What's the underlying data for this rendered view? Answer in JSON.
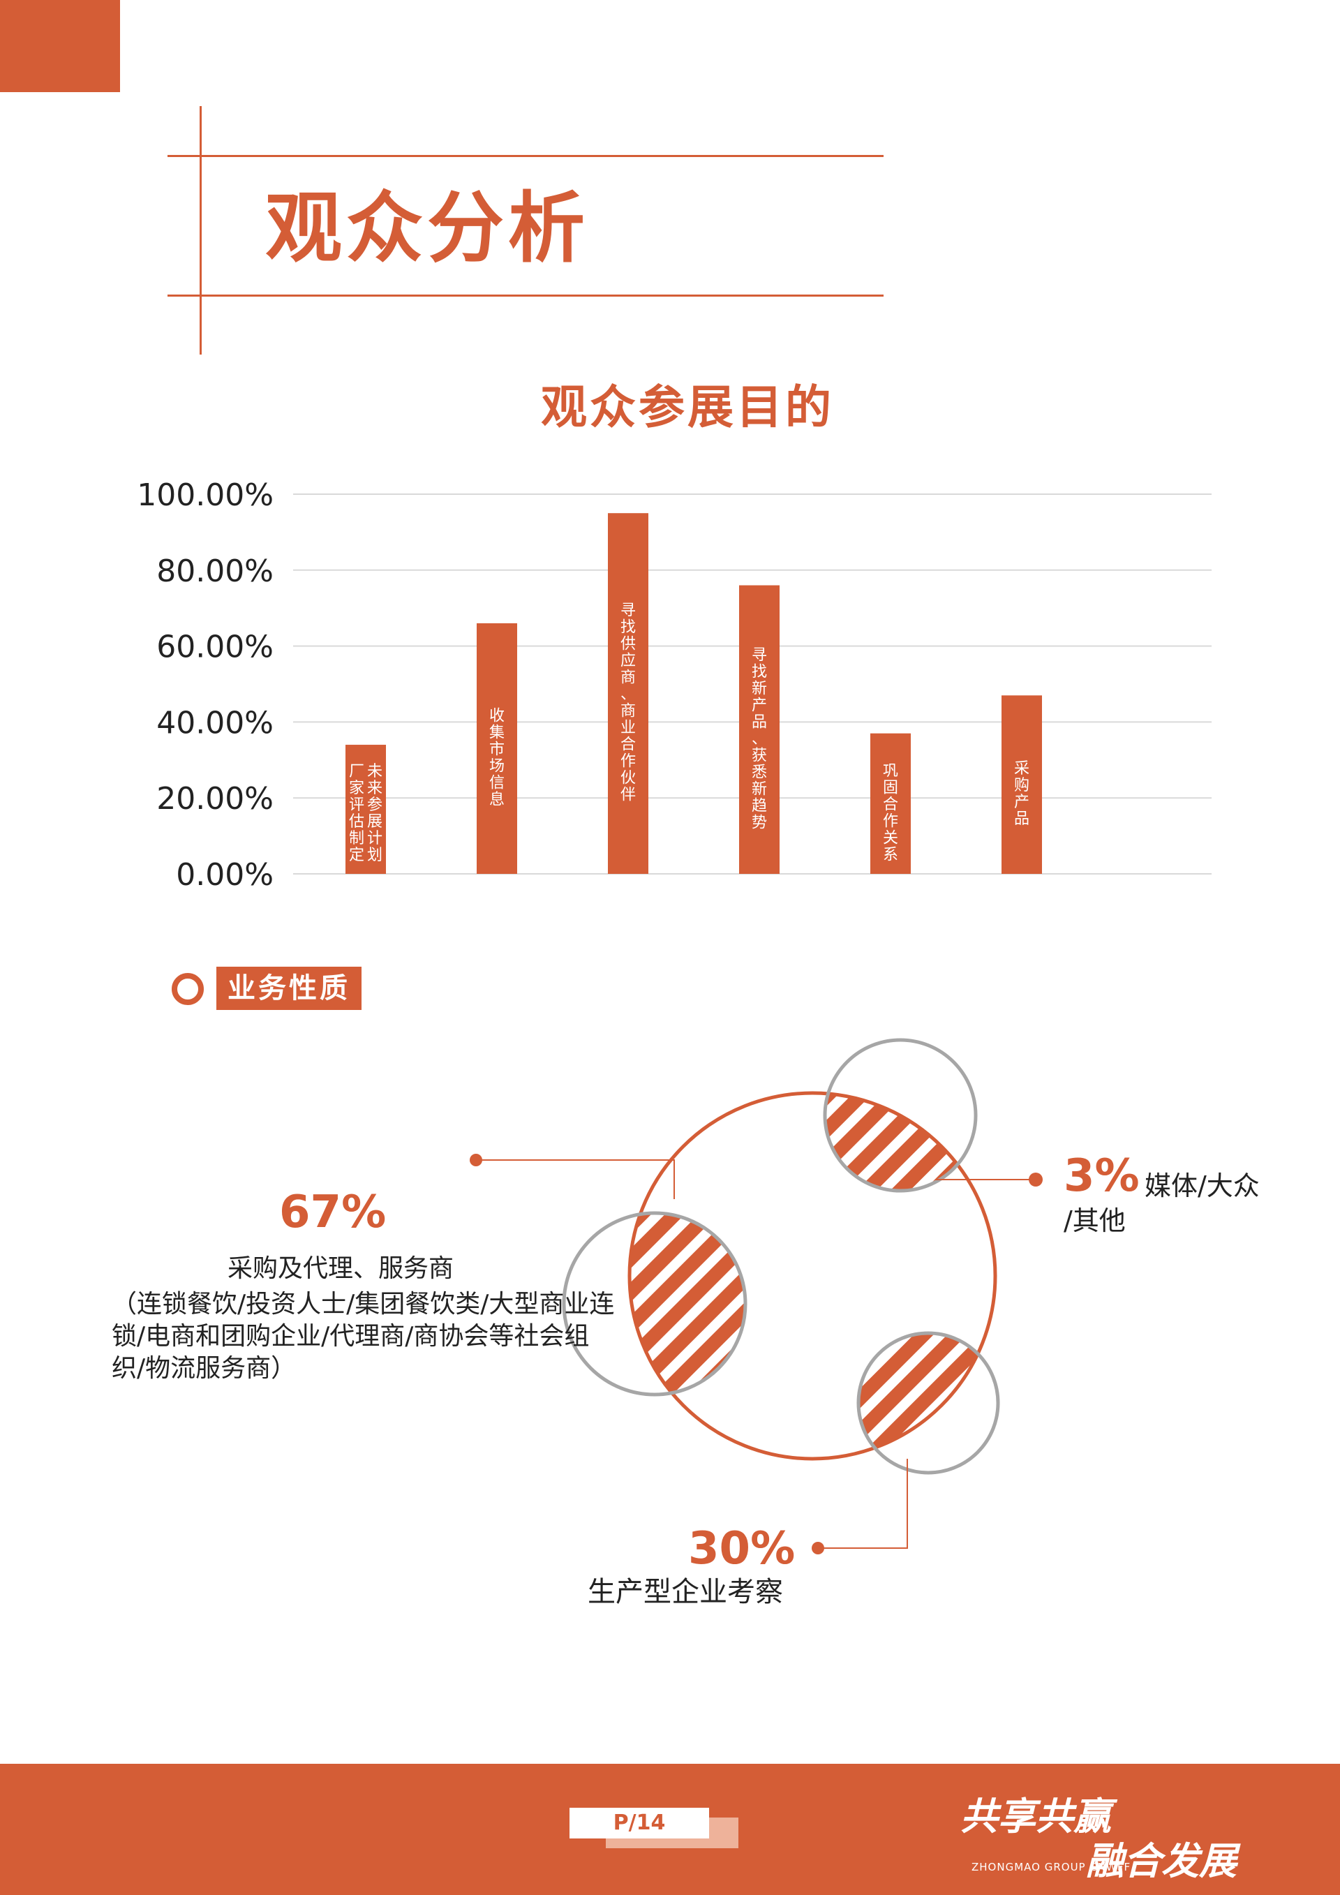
{
  "header": {
    "title": "观众分析"
  },
  "chart_data": {
    "type": "bar",
    "title": "观众参展目的",
    "categories": [
      "未来参展计划厂家评估制定",
      "收集市场信息",
      "寻找供应商、商业合作伙伴",
      "寻找新产品、获悉新趋势",
      "巩固合作关系",
      "采购产品"
    ],
    "bar_labels": [
      [
        "未来参展计划",
        "厂家评估制定"
      ],
      [
        "收集市场信息"
      ],
      [
        "寻找供应商、商业合作伙伴"
      ],
      [
        "寻找新产品、获悉新趋势"
      ],
      [
        "巩固合作关系"
      ],
      [
        "采购产品"
      ]
    ],
    "values": [
      34,
      66,
      95,
      76,
      37,
      47
    ],
    "ylim": [
      0,
      100
    ],
    "yticks": [
      "0.00%",
      "20.00%",
      "40.00%",
      "60.00%",
      "80.00%",
      "100.00%"
    ],
    "grid": true,
    "bar_color": "#d45d36"
  },
  "section": {
    "label": "业务性质"
  },
  "business": {
    "items": [
      {
        "pct": "67%",
        "label": "采购及代理、服务商",
        "detail": [
          "（连锁餐饮/投资人士/集团餐饮类/大型商业连",
          "锁/电商和团购企业/代理商/商协会等社会组",
          "织/物流服务商）"
        ]
      },
      {
        "pct": "3%",
        "label": [
          "媒体/大众",
          "/其他"
        ]
      },
      {
        "pct": "30%",
        "label": "生产型企业考察"
      }
    ]
  },
  "footer": {
    "page": "P/14",
    "slogan_1": "共享共赢",
    "slogan_2": "融合发展",
    "brand_en": "ZHONGMAO GROUP CNWFF"
  },
  "colors": {
    "accent": "#d45d36",
    "grid": "#d9d9d9",
    "ring": "#a6a6a6"
  }
}
